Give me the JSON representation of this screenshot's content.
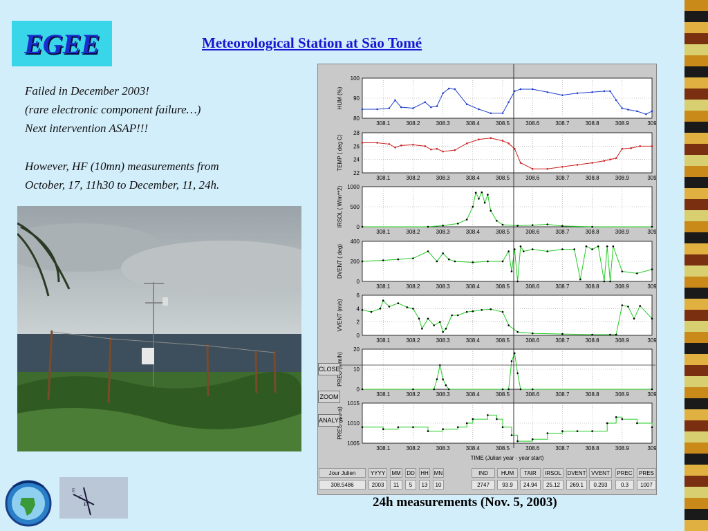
{
  "logo_text": "EGEE",
  "title": "Meteorological  Station at São Tomé",
  "notes": [
    "Failed in December 2003!",
    "(rare electronic component failure…)",
    "Next intervention ASAP!!!",
    "However, HF (10mn) measurements from",
    "October, 17, 11h30  to December, 11, 24h."
  ],
  "caption": "24h measurements (Nov. 5, 2003)",
  "buttons": {
    "close": "CLOSE",
    "zoom": "ZOOM",
    "analys": "ANALYS"
  },
  "colors": {
    "hum": "#1f3fc8",
    "temp": "#c82020",
    "green": "#22cc22"
  },
  "chart_data": {
    "type": "line",
    "xlabel": "TIME (Julian year - year start)",
    "x_ticks": [
      "308.1",
      "308.2",
      "308.3",
      "308.4",
      "308.5",
      "308.6",
      "308.7",
      "308.8",
      "308.9",
      "309"
    ],
    "xlim": [
      308.03,
      309
    ],
    "cursor_x": 308.537,
    "panels": [
      {
        "key": "hum",
        "ylabel": "HUM  (%)",
        "ylim": [
          80,
          100
        ],
        "yticks": [
          "100",
          "90",
          "80"
        ],
        "color": "hum",
        "style": "line",
        "x": [
          308.03,
          308.08,
          308.12,
          308.14,
          308.16,
          308.2,
          308.24,
          308.26,
          308.28,
          308.3,
          308.32,
          308.34,
          308.38,
          308.42,
          308.46,
          308.5,
          308.52,
          308.54,
          308.56,
          308.6,
          308.65,
          308.7,
          308.75,
          308.8,
          308.84,
          308.86,
          308.88,
          308.9,
          308.92,
          308.95,
          308.98,
          309
        ],
        "y": [
          84.5,
          84.5,
          85,
          89,
          85.5,
          85,
          88,
          85.5,
          86,
          92.5,
          94.8,
          94.5,
          87,
          84.5,
          82.5,
          82.5,
          88,
          93.5,
          94.5,
          94.5,
          93,
          91.5,
          92.5,
          93,
          93.5,
          93.5,
          89,
          85,
          84.3,
          83.5,
          82,
          83.5
        ]
      },
      {
        "key": "temp",
        "ylabel": "TEMP ( deg C)",
        "ylim": [
          22,
          28
        ],
        "yticks": [
          "28",
          "26",
          "24",
          "22"
        ],
        "color": "temp",
        "style": "line",
        "x": [
          308.03,
          308.08,
          308.12,
          308.14,
          308.16,
          308.2,
          308.24,
          308.26,
          308.28,
          308.3,
          308.34,
          308.38,
          308.42,
          308.46,
          308.5,
          308.52,
          308.54,
          308.56,
          308.6,
          308.65,
          308.7,
          308.75,
          308.8,
          308.84,
          308.86,
          308.88,
          308.9,
          308.93,
          308.96,
          309
        ],
        "y": [
          26.5,
          26.5,
          26.3,
          25.8,
          26.1,
          26.2,
          26,
          25.5,
          25.6,
          25.2,
          25.4,
          26.4,
          27.0,
          27.2,
          26.8,
          26.4,
          25.6,
          23.5,
          22.6,
          22.6,
          22.9,
          23.2,
          23.5,
          23.8,
          24.0,
          24.2,
          25.6,
          25.7,
          26.0,
          26.0
        ]
      },
      {
        "key": "irsol",
        "ylabel": "IRSOL ( W/m**2)",
        "ylim": [
          0,
          1000
        ],
        "yticks": [
          "1000",
          "500",
          "0"
        ],
        "color": "green",
        "style": "dotline",
        "x": [
          308.03,
          308.25,
          308.3,
          308.35,
          308.38,
          308.4,
          308.41,
          308.42,
          308.43,
          308.44,
          308.45,
          308.46,
          308.48,
          308.5,
          308.55,
          308.6,
          308.65,
          308.7,
          308.8,
          309
        ],
        "y": [
          0,
          0,
          30,
          80,
          180,
          500,
          850,
          700,
          860,
          600,
          800,
          400,
          150,
          50,
          30,
          40,
          60,
          20,
          0,
          0
        ]
      },
      {
        "key": "dvent",
        "ylabel": "DVENT ( deg)",
        "ylim": [
          0,
          400
        ],
        "yticks": [
          "400",
          "200",
          "0"
        ],
        "color": "green",
        "style": "dotline",
        "x": [
          308.03,
          308.1,
          308.15,
          308.2,
          308.25,
          308.28,
          308.3,
          308.32,
          308.34,
          308.4,
          308.45,
          308.5,
          308.52,
          308.53,
          308.54,
          308.55,
          308.56,
          308.57,
          308.6,
          308.65,
          308.7,
          308.74,
          308.76,
          308.78,
          308.8,
          308.82,
          308.84,
          308.85,
          308.86,
          308.87,
          308.9,
          308.95,
          309
        ],
        "y": [
          200,
          210,
          220,
          230,
          300,
          200,
          280,
          220,
          200,
          190,
          200,
          200,
          300,
          100,
          320,
          0,
          350,
          300,
          320,
          300,
          320,
          320,
          20,
          350,
          320,
          350,
          0,
          350,
          0,
          350,
          100,
          80,
          120
        ]
      },
      {
        "key": "vvent",
        "ylabel": "VVENT (m/s)",
        "ylim": [
          0,
          6
        ],
        "yticks": [
          "6",
          "4",
          "2",
          "0"
        ],
        "color": "green",
        "style": "dotline",
        "x": [
          308.03,
          308.06,
          308.09,
          308.1,
          308.12,
          308.15,
          308.18,
          308.2,
          308.22,
          308.23,
          308.25,
          308.27,
          308.29,
          308.3,
          308.31,
          308.33,
          308.35,
          308.38,
          308.4,
          308.43,
          308.46,
          308.5,
          308.52,
          308.55,
          308.6,
          308.7,
          308.8,
          308.86,
          308.88,
          308.9,
          308.92,
          308.94,
          308.96,
          309
        ],
        "y": [
          3.8,
          3.5,
          4.0,
          5.2,
          4.3,
          4.8,
          4.2,
          4.0,
          2.5,
          1.0,
          2.5,
          1.5,
          2.0,
          0.5,
          1.0,
          3.0,
          3.0,
          3.5,
          3.6,
          3.8,
          3.9,
          3.5,
          1.5,
          0.5,
          0.3,
          0.2,
          0.1,
          0.1,
          0.1,
          4.5,
          4.3,
          2.5,
          4.4,
          2.5
        ]
      },
      {
        "key": "prec",
        "ylabel": "PREC (mm/h)",
        "ylim": [
          0,
          20
        ],
        "yticks": [
          "20",
          "10",
          "0"
        ],
        "color": "green",
        "style": "dotline",
        "x": [
          308.03,
          308.2,
          308.27,
          308.28,
          308.29,
          308.3,
          308.31,
          308.32,
          308.5,
          308.52,
          308.53,
          308.54,
          308.55,
          308.56,
          308.6,
          309
        ],
        "y": [
          0,
          0,
          0,
          5,
          12,
          5,
          2,
          0,
          0,
          0,
          14,
          18,
          8,
          0,
          0,
          0
        ]
      },
      {
        "key": "pres",
        "ylabel": "PRES (mb-a)",
        "ylim": [
          1005,
          1015
        ],
        "yticks": [
          "1015",
          "1010",
          "1005"
        ],
        "color": "green",
        "style": "step",
        "x": [
          308.03,
          308.1,
          308.15,
          308.2,
          308.25,
          308.3,
          308.35,
          308.38,
          308.4,
          308.45,
          308.48,
          308.5,
          308.53,
          308.55,
          308.6,
          308.65,
          308.7,
          308.75,
          308.8,
          308.85,
          308.88,
          308.9,
          308.95,
          309
        ],
        "y": [
          1009,
          1008.5,
          1009,
          1009,
          1008,
          1008.5,
          1009,
          1010,
          1011,
          1012,
          1011,
          1009,
          1007,
          1005.5,
          1006,
          1007.5,
          1008,
          1008,
          1008,
          1010,
          1011.5,
          1011,
          1010,
          1009
        ]
      }
    ]
  },
  "table_headers": [
    "Jour Julien",
    "YYYY",
    "MM",
    "DD",
    "HH",
    "MN",
    "IND",
    "HUM",
    "TAIR",
    "IRSOL",
    "DVENT",
    "VVENT",
    "PREC",
    "PRES"
  ],
  "table_values": [
    "308.5486",
    "2003",
    "11",
    "5",
    "13",
    "10",
    "2747",
    "93.9",
    "24.94",
    "25.12",
    "269.1",
    "0.293",
    "0.3",
    "1007"
  ]
}
